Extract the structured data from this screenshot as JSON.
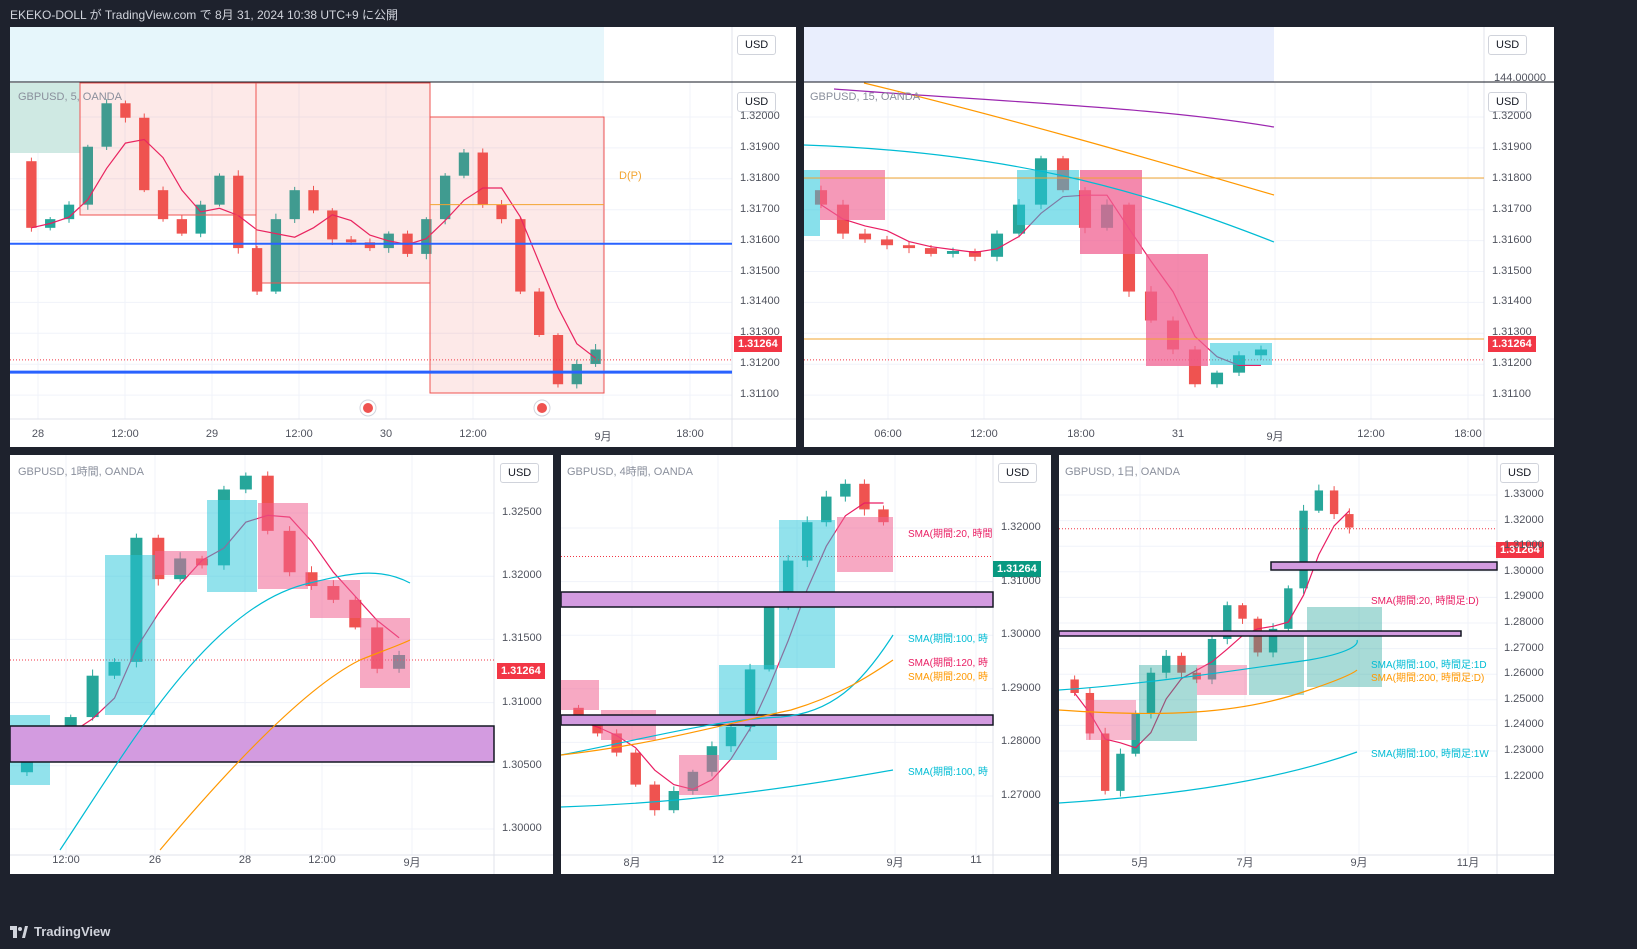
{
  "header": {
    "title": "EKEKO-DOLL が TradingView.com で 8月 31, 2024 10:38 UTC+9 に公開"
  },
  "footer": {
    "brand": "TradingView"
  },
  "colors": {
    "bull": "#26a69a",
    "bear": "#ef5350",
    "sma20": "#e91e63",
    "sma100": "#00bcd4",
    "sma200": "#ff9800",
    "pivot": "#f2a431",
    "zoneFill": "#d39be0",
    "level": "#2962ff",
    "lastPrice": "#f23645"
  },
  "panels": {
    "p5m": {
      "symbol": "GBPUSD, 5, OANDA",
      "currency": "USD",
      "currency_top": "USD",
      "last_price": "1.31264",
      "pivot_label": "D(P)",
      "y_ticks": [
        "1.32000",
        "1.31900",
        "1.31800",
        "1.31700",
        "1.31600",
        "1.31500",
        "1.31400",
        "1.31300",
        "1.31200",
        "1.31100"
      ],
      "x_ticks": [
        "28",
        "12:00",
        "29",
        "12:00",
        "30",
        "12:00",
        "9月",
        "18:00"
      ]
    },
    "p15m": {
      "symbol": "GBPUSD, 15, OANDA",
      "currency": "USD",
      "currency_top": "USD",
      "top_tick": "144.00000",
      "last_price": "1.31264",
      "y_ticks": [
        "1.32000",
        "1.31900",
        "1.31800",
        "1.31700",
        "1.31600",
        "1.31500",
        "1.31400",
        "1.31300",
        "1.31200",
        "1.31100"
      ],
      "x_ticks": [
        "06:00",
        "12:00",
        "18:00",
        "31",
        "9月",
        "12:00",
        "18:00"
      ]
    },
    "p1h": {
      "symbol": "GBPUSD, 1時間, OANDA",
      "currency": "USD",
      "last_price": "1.31264",
      "y_ticks": [
        "1.32500",
        "1.32000",
        "1.31500",
        "1.31000",
        "1.30500",
        "1.30000"
      ],
      "x_ticks": [
        "12:00",
        "26",
        "28",
        "12:00",
        "9月"
      ]
    },
    "p4h": {
      "symbol": "GBPUSD, 4時間, OANDA",
      "currency": "USD",
      "last_price": "1.31264",
      "y_ticks": [
        "1.32000",
        "1.31000",
        "1.30000",
        "1.29000",
        "1.28000",
        "1.27000"
      ],
      "x_ticks": [
        "8月",
        "12",
        "21",
        "9月",
        "11"
      ],
      "sma_labels": [
        "SMA(期間:20, 時間",
        "SMA(期間:100, 時",
        "SMA(期間:120, 時",
        "SMA(期間:200, 時",
        "SMA(期間:100, 時"
      ]
    },
    "p1d": {
      "symbol": "GBPUSD, 1日, OANDA",
      "currency": "USD",
      "last_price": "1.31264",
      "y_ticks": [
        "1.33000",
        "1.32000",
        "1.31000",
        "1.30000",
        "1.29000",
        "1.28000",
        "1.27000",
        "1.26000",
        "1.25000",
        "1.24000",
        "1.23000",
        "1.22000"
      ],
      "x_ticks": [
        "5月",
        "7月",
        "9月",
        "11月"
      ],
      "sma_labels": [
        "SMA(期間:20, 時間足:D)",
        "SMA(期間:100, 時間足:1D",
        "SMA(期間:200, 時間足:D)",
        "SMA(期間:100, 時間足:1W"
      ]
    }
  },
  "chart_data": [
    {
      "type": "candlestick",
      "symbol": "GBPUSD",
      "timeframe": "5",
      "ylim": [
        1.3106,
        1.3222
      ],
      "last": 1.31264,
      "points": [
        [
          1.3195,
          1.3172
        ],
        [
          1.3172,
          1.3175
        ],
        [
          1.3175,
          1.318
        ],
        [
          1.318,
          1.32
        ],
        [
          1.32,
          1.3215
        ],
        [
          1.3215,
          1.321
        ],
        [
          1.321,
          1.3185
        ],
        [
          1.3185,
          1.3175
        ],
        [
          1.3175,
          1.317
        ],
        [
          1.317,
          1.318
        ],
        [
          1.318,
          1.319
        ],
        [
          1.319,
          1.3165
        ],
        [
          1.3165,
          1.315
        ],
        [
          1.315,
          1.3175
        ],
        [
          1.3175,
          1.3185
        ],
        [
          1.3185,
          1.3178
        ],
        [
          1.3178,
          1.3168
        ],
        [
          1.3168,
          1.3167
        ],
        [
          1.3167,
          1.3165
        ],
        [
          1.3165,
          1.317
        ],
        [
          1.317,
          1.3163
        ],
        [
          1.3163,
          1.3175
        ],
        [
          1.3175,
          1.319
        ],
        [
          1.319,
          1.3198
        ],
        [
          1.3198,
          1.318
        ],
        [
          1.318,
          1.3175
        ],
        [
          1.3175,
          1.315
        ],
        [
          1.315,
          1.3135
        ],
        [
          1.3135,
          1.3118
        ],
        [
          1.3118,
          1.3125
        ],
        [
          1.3125,
          1.313
        ]
      ]
    },
    {
      "type": "candlestick",
      "symbol": "GBPUSD",
      "timeframe": "15",
      "ylim": [
        1.3106,
        1.3222
      ],
      "last": 1.31264,
      "points": [
        [
          1.3185,
          1.318
        ],
        [
          1.318,
          1.317
        ],
        [
          1.317,
          1.3168
        ],
        [
          1.3168,
          1.3166
        ],
        [
          1.3166,
          1.3165
        ],
        [
          1.3165,
          1.3163
        ],
        [
          1.3163,
          1.3164
        ],
        [
          1.3164,
          1.3162
        ],
        [
          1.3162,
          1.317
        ],
        [
          1.317,
          1.318
        ],
        [
          1.318,
          1.3196
        ],
        [
          1.3196,
          1.3185
        ],
        [
          1.3185,
          1.3172
        ],
        [
          1.3172,
          1.318
        ],
        [
          1.318,
          1.315
        ],
        [
          1.315,
          1.314
        ],
        [
          1.314,
          1.313
        ],
        [
          1.313,
          1.3118
        ],
        [
          1.3118,
          1.3122
        ],
        [
          1.3122,
          1.3128
        ],
        [
          1.3128,
          1.313
        ]
      ]
    },
    {
      "type": "candlestick",
      "symbol": "GBPUSD",
      "timeframe": "1時間",
      "ylim": [
        1.2985,
        1.3275
      ],
      "last": 1.31264,
      "points": [
        [
          1.3045,
          1.3065
        ],
        [
          1.3065,
          1.307
        ],
        [
          1.307,
          1.3085
        ],
        [
          1.3085,
          1.3115
        ],
        [
          1.3115,
          1.3125
        ],
        [
          1.3125,
          1.3215
        ],
        [
          1.3215,
          1.3185
        ],
        [
          1.3185,
          1.32
        ],
        [
          1.32,
          1.3195
        ],
        [
          1.3195,
          1.325
        ],
        [
          1.325,
          1.326
        ],
        [
          1.326,
          1.322
        ],
        [
          1.322,
          1.319
        ],
        [
          1.319,
          1.318
        ],
        [
          1.318,
          1.317
        ],
        [
          1.317,
          1.315
        ],
        [
          1.315,
          1.312
        ],
        [
          1.312,
          1.313
        ]
      ]
    },
    {
      "type": "candlestick",
      "symbol": "GBPUSD",
      "timeframe": "4時間",
      "ylim": [
        1.266,
        1.3285
      ],
      "last": 1.31264,
      "points": [
        [
          1.289,
          1.287
        ],
        [
          1.287,
          1.285
        ],
        [
          1.285,
          1.282
        ],
        [
          1.282,
          1.277
        ],
        [
          1.277,
          1.273
        ],
        [
          1.273,
          1.276
        ],
        [
          1.276,
          1.279
        ],
        [
          1.279,
          1.283
        ],
        [
          1.283,
          1.286
        ],
        [
          1.286,
          1.295
        ],
        [
          1.295,
          1.305
        ],
        [
          1.305,
          1.312
        ],
        [
          1.312,
          1.318
        ],
        [
          1.318,
          1.322
        ],
        [
          1.322,
          1.324
        ],
        [
          1.324,
          1.32
        ],
        [
          1.32,
          1.318
        ]
      ]
    },
    {
      "type": "candlestick",
      "symbol": "GBPUSD",
      "timeframe": "1日",
      "ylim": [
        1.216,
        1.3345
      ],
      "last": 1.31264,
      "points": [
        [
          1.268,
          1.264
        ],
        [
          1.264,
          1.252
        ],
        [
          1.252,
          1.235
        ],
        [
          1.235,
          1.246
        ],
        [
          1.246,
          1.258
        ],
        [
          1.258,
          1.27
        ],
        [
          1.27,
          1.275
        ],
        [
          1.275,
          1.27
        ],
        [
          1.27,
          1.268
        ],
        [
          1.268,
          1.28
        ],
        [
          1.28,
          1.29
        ],
        [
          1.29,
          1.286
        ],
        [
          1.286,
          1.276
        ],
        [
          1.276,
          1.283
        ],
        [
          1.283,
          1.295
        ],
        [
          1.295,
          1.318
        ],
        [
          1.318,
          1.324
        ],
        [
          1.324,
          1.317
        ],
        [
          1.317,
          1.313
        ]
      ]
    }
  ]
}
